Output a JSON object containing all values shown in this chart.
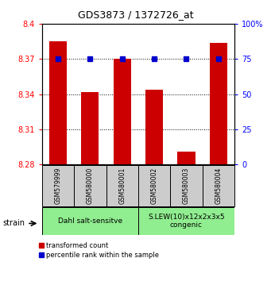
{
  "title": "GDS3873 / 1372726_at",
  "samples": [
    "GSM579999",
    "GSM580000",
    "GSM580001",
    "GSM580002",
    "GSM580003",
    "GSM580004"
  ],
  "red_values": [
    8.385,
    8.342,
    8.37,
    8.344,
    8.291,
    8.384
  ],
  "blue_values": [
    75,
    75,
    75,
    75,
    75,
    75
  ],
  "ylim_left": [
    8.28,
    8.4
  ],
  "ylim_right": [
    0,
    100
  ],
  "yticks_left": [
    8.28,
    8.31,
    8.34,
    8.37,
    8.4
  ],
  "yticks_right": [
    0,
    25,
    50,
    75,
    100
  ],
  "groups": [
    {
      "label": "Dahl salt-sensitve",
      "span": [
        0,
        3
      ],
      "color": "#90EE90"
    },
    {
      "label": "S.LEW(10)x12x2x3x5\ncongenic",
      "span": [
        3,
        6
      ],
      "color": "#90EE90"
    }
  ],
  "strain_label": "strain",
  "legend_red": "transformed count",
  "legend_blue": "percentile rank within the sample",
  "bar_color": "#CC0000",
  "dot_color": "#0000CC",
  "bar_width": 0.55,
  "plot_bg": "#ffffff",
  "sample_box_color": "#cccccc"
}
